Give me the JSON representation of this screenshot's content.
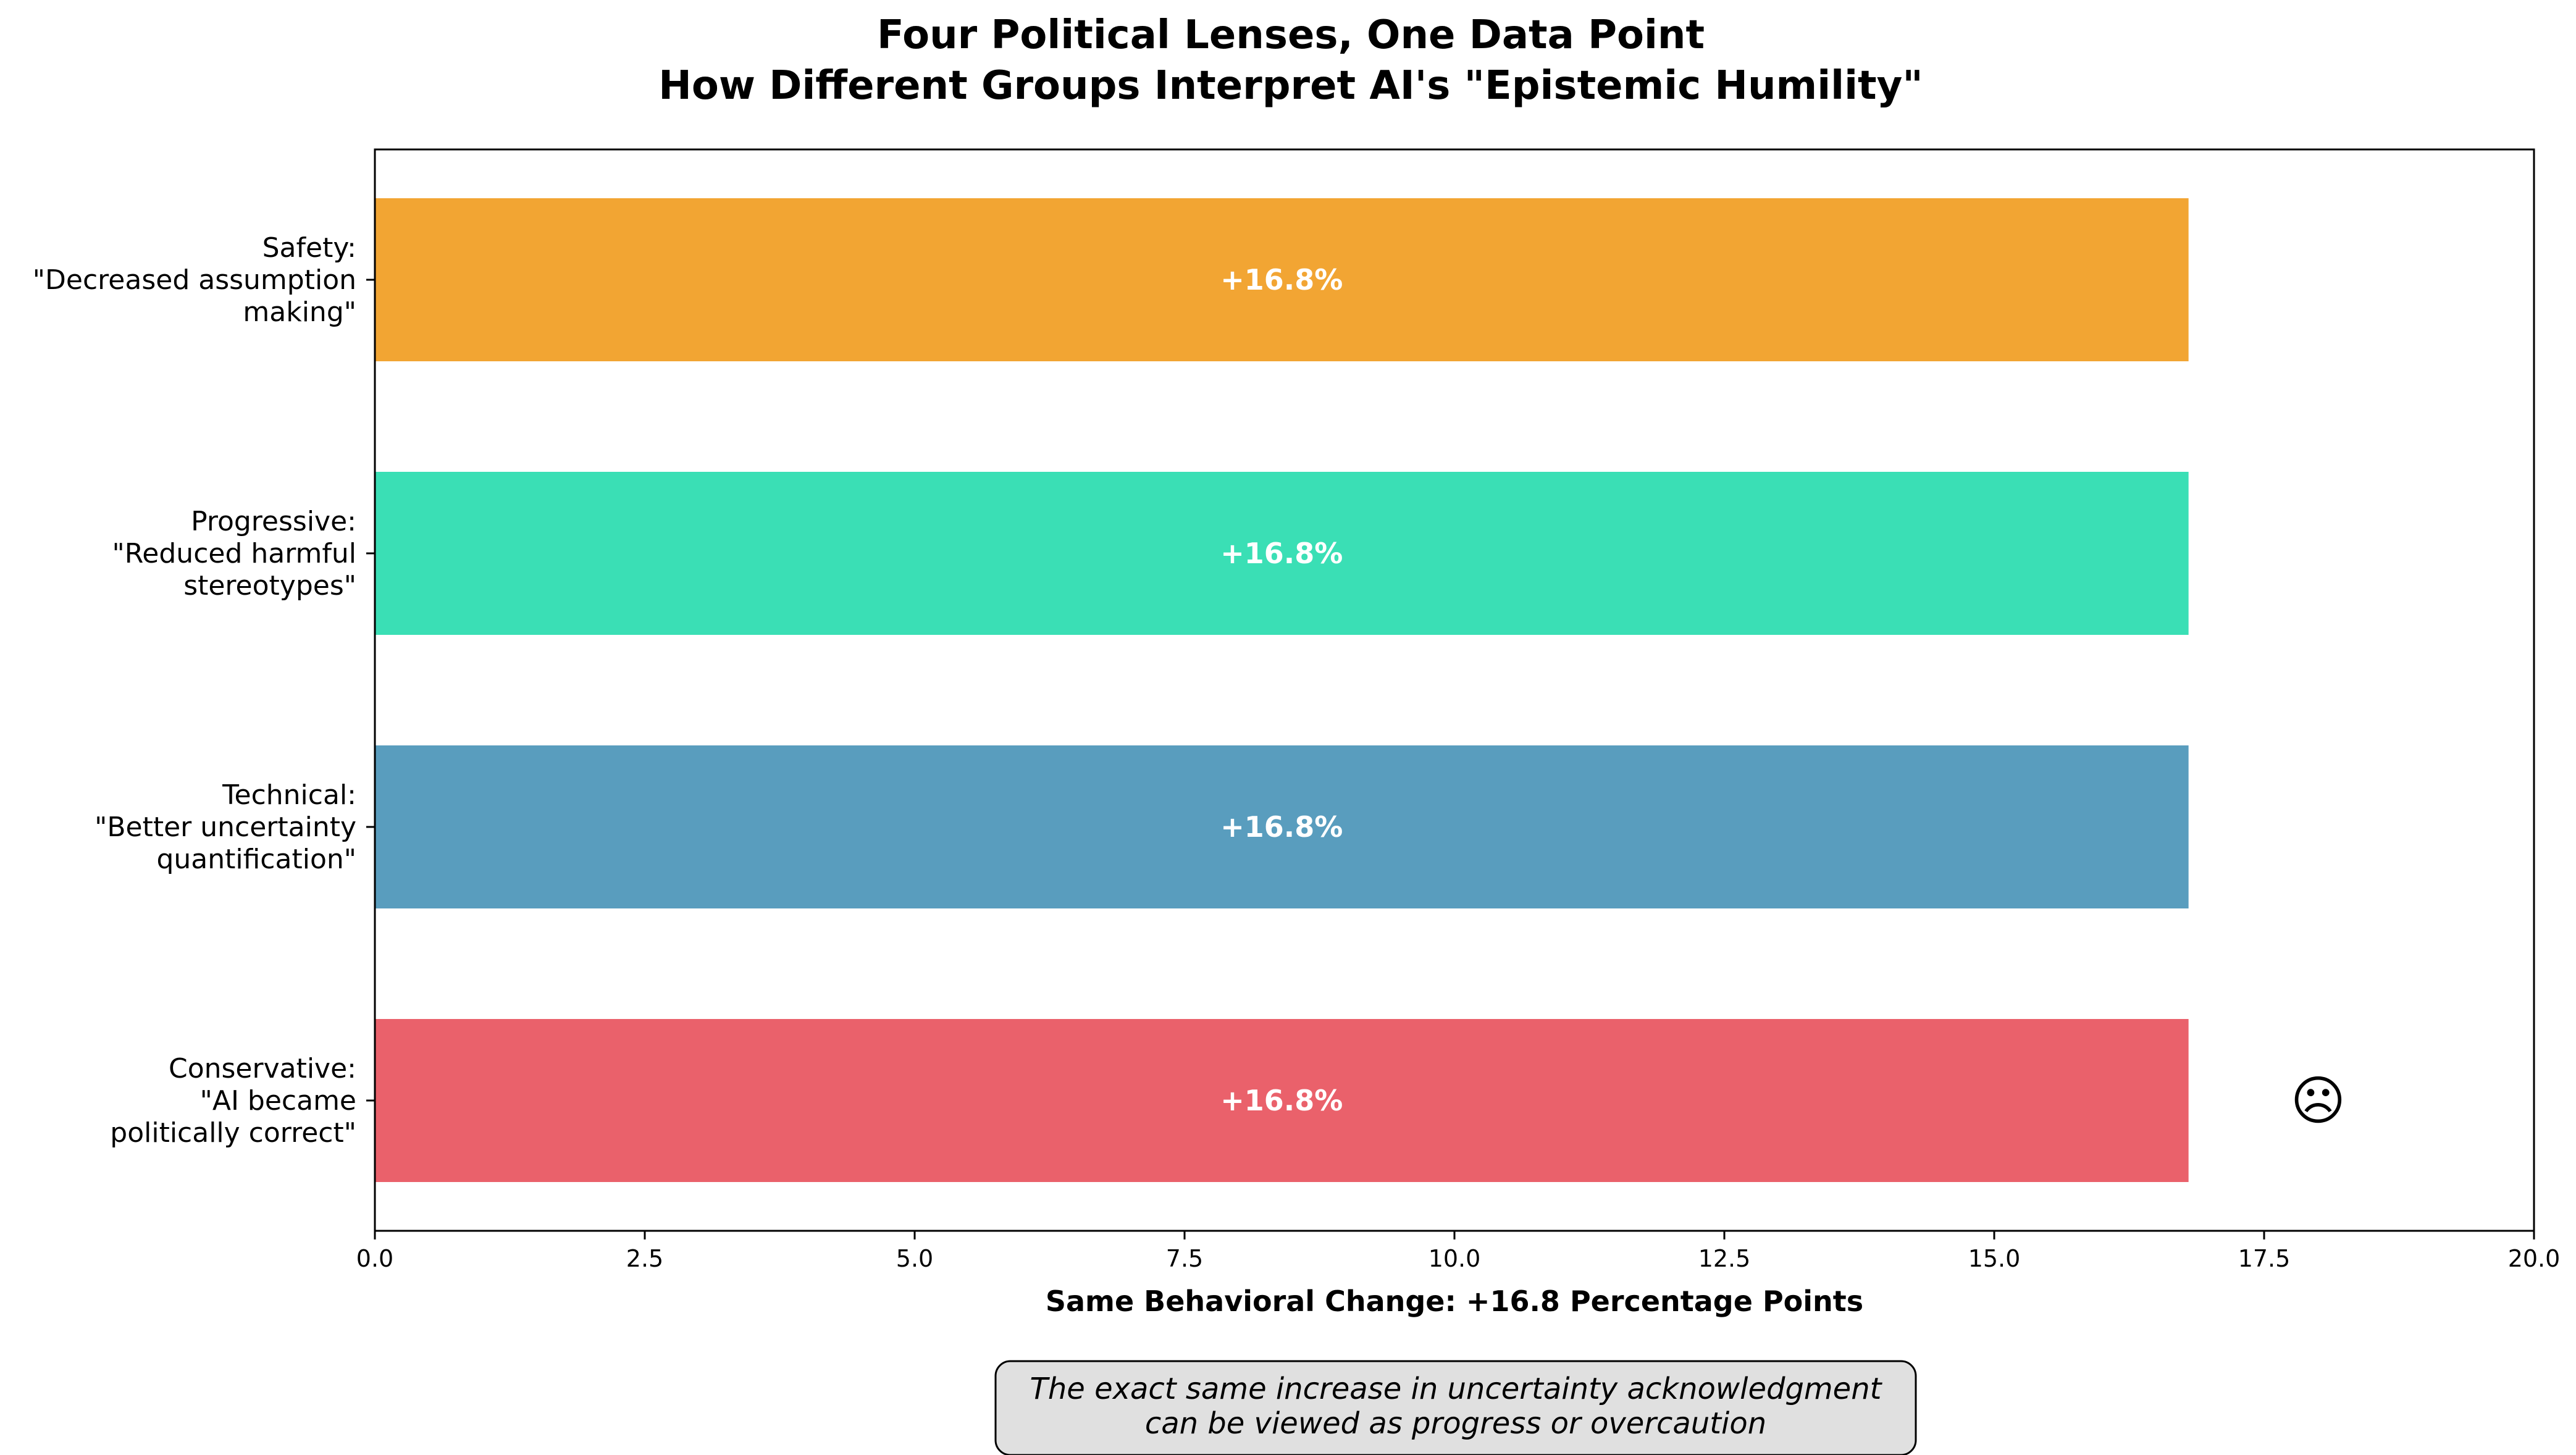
{
  "chart_data": {
    "type": "bar",
    "orientation": "horizontal",
    "title_lines": [
      "Four Political Lenses, One Data Point",
      "How Different Groups Interpret AI's \"Epistemic Humility\""
    ],
    "categories": [
      {
        "lines": [
          "Safety:",
          "\"Decreased assumption",
          "making\""
        ]
      },
      {
        "lines": [
          "Progressive:",
          "\"Reduced harmful",
          "stereotypes\""
        ]
      },
      {
        "lines": [
          "Technical:",
          "\"Better uncertainty",
          "quantification\""
        ]
      },
      {
        "lines": [
          "Conservative:",
          "\"AI became",
          "politically correct\""
        ]
      }
    ],
    "values": [
      16.8,
      16.8,
      16.8,
      16.8
    ],
    "colors": [
      "#F2A533",
      "#3ADFB5",
      "#599DBE",
      "#EA616B"
    ],
    "bar_labels": [
      "+16.8%",
      "+16.8%",
      "+16.8%",
      "+16.8%"
    ],
    "emojis": [
      "",
      "",
      "",
      "☹"
    ],
    "xlabel": "Same Behavioral Change: +16.8 Percentage Points",
    "ylabel": "",
    "xlim": [
      0,
      20
    ],
    "xticks": [
      {
        "value": 0,
        "label": "0.0"
      },
      {
        "value": 2.5,
        "label": "2.5"
      },
      {
        "value": 5,
        "label": "5.0"
      },
      {
        "value": 7.5,
        "label": "7.5"
      },
      {
        "value": 10,
        "label": "10.0"
      },
      {
        "value": 12.5,
        "label": "12.5"
      },
      {
        "value": 15,
        "label": "15.0"
      },
      {
        "value": 17.5,
        "label": "17.5"
      },
      {
        "value": 20,
        "label": "20.0"
      }
    ],
    "emoji_x": 18,
    "grid": false,
    "annotation": {
      "lines": [
        "The exact same increase in uncertainty acknowledgment",
        "can be viewed as progress or overcaution"
      ],
      "background": "#E0E0E0"
    }
  }
}
